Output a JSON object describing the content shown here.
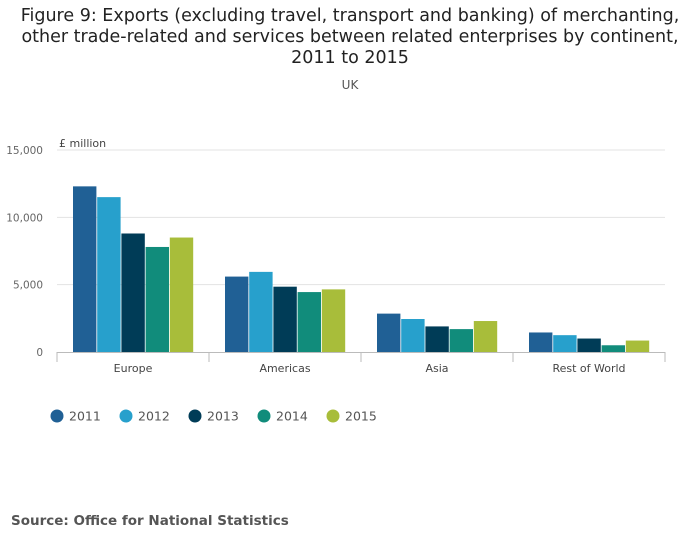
{
  "title_lines": [
    "Figure 9: Exports (excluding travel, transport and banking) of merchanting,",
    "other trade-related and services between related enterprises by continent,",
    "2011 to 2015"
  ],
  "subtitle": "UK",
  "source": "Source: Office for National Statistics",
  "chart_data": {
    "type": "bar",
    "title": "Figure 9: Exports (excluding travel, transport and banking) of merchanting, other trade-related and services between related enterprises by continent, 2011 to 2015",
    "subtitle": "UK",
    "ylabel": "£ million",
    "xlabel": "",
    "ylim": [
      0,
      15000
    ],
    "yticks": [
      0,
      5000,
      10000,
      15000
    ],
    "ytick_labels": [
      "0",
      "5,000",
      "10,000",
      "15,000"
    ],
    "grid": true,
    "legend_position": "bottom-left",
    "categories": [
      "Europe",
      "Americas",
      "Asia",
      "Rest of World"
    ],
    "series": [
      {
        "name": "2011",
        "color": "#206095",
        "values": [
          12300,
          5600,
          2850,
          1450
        ]
      },
      {
        "name": "2012",
        "color": "#27a0cc",
        "values": [
          11500,
          5950,
          2450,
          1250
        ]
      },
      {
        "name": "2013",
        "color": "#003c57",
        "values": [
          8800,
          4850,
          1900,
          1000
        ]
      },
      {
        "name": "2014",
        "color": "#118c7b",
        "values": [
          7800,
          4450,
          1700,
          500
        ]
      },
      {
        "name": "2015",
        "color": "#a8bd3a",
        "values": [
          8500,
          4650,
          2300,
          850
        ]
      }
    ]
  }
}
